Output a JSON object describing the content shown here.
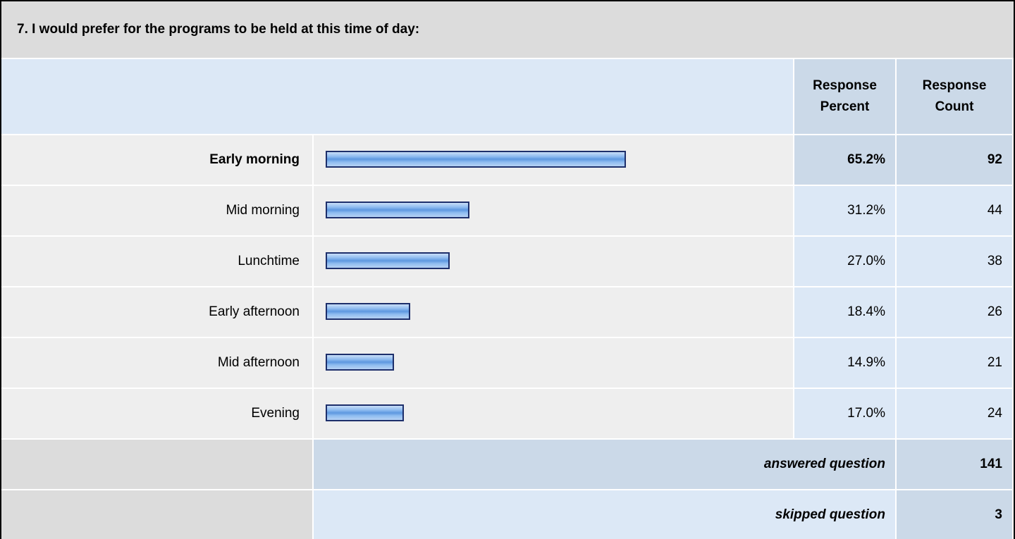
{
  "chart_data": {
    "type": "bar",
    "title": "7. I would prefer for the programs to be held at this time of day:",
    "columns": [
      "Response Percent",
      "Response Count"
    ],
    "categories": [
      "Early morning",
      "Mid morning",
      "Lunchtime",
      "Early afternoon",
      "Mid afternoon",
      "Evening"
    ],
    "values": [
      65.2,
      31.2,
      27.0,
      18.4,
      14.9,
      17.0
    ],
    "value_labels": [
      "65.2%",
      "31.2%",
      "27.0%",
      "18.4%",
      "14.9%",
      "17.0%"
    ],
    "counts": [
      92,
      44,
      38,
      26,
      21,
      24
    ],
    "xlim": [
      0,
      100
    ],
    "color": "#7fb2ee",
    "footer": [
      {
        "label": "answered question",
        "value": 141
      },
      {
        "label": "skipped question",
        "value": 3
      }
    ]
  }
}
